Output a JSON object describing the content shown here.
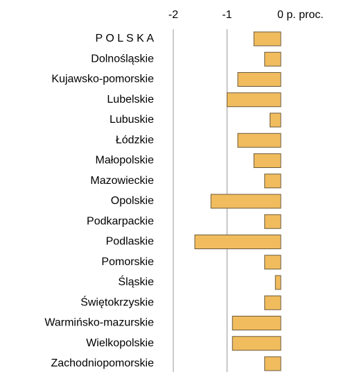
{
  "chart_data": {
    "type": "barh",
    "categories": [
      "P O L S K A",
      "Dolnośląskie",
      "Kujawsko-pomorskie",
      "Lubelskie",
      "Lubuskie",
      "Łódzkie",
      "Małopolskie",
      "Mazowieckie",
      "Opolskie",
      "Podkarpackie",
      "Podlaskie",
      "Pomorskie",
      "Śląskie",
      "Świętokrzyskie",
      "Warmińsko-mazurskie",
      "Wielkopolskie",
      "Zachodniopomorskie"
    ],
    "values": [
      -0.5,
      -0.3,
      -0.8,
      -1.0,
      -0.2,
      -0.8,
      -0.5,
      -0.3,
      -1.3,
      -0.3,
      -1.6,
      -0.3,
      -0.1,
      -0.3,
      -0.9,
      -0.9,
      -0.3
    ],
    "color": "#f0bc5e",
    "xlim": [
      -2,
      0
    ],
    "xticks": [
      -2,
      -1,
      {
        "value": 0,
        "label": "0 p. proc."
      }
    ],
    "grid": true
  }
}
